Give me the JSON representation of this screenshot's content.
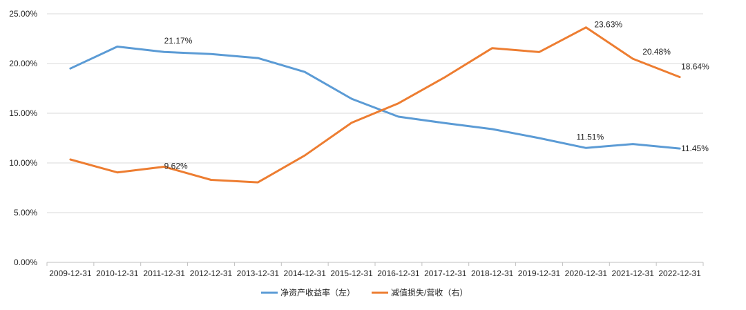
{
  "chart_data": {
    "type": "line",
    "title": "",
    "xlabel": "",
    "ylabel": "",
    "categories": [
      "2009-12-31",
      "2010-12-31",
      "2011-12-31",
      "2012-12-31",
      "2013-12-31",
      "2014-12-31",
      "2015-12-31",
      "2016-12-31",
      "2017-12-31",
      "2018-12-31",
      "2019-12-31",
      "2020-12-31",
      "2021-12-31",
      "2022-12-31"
    ],
    "yticks": [
      "25.00%",
      "20.00%",
      "15.00%",
      "10.00%",
      "5.00%",
      "0.00%"
    ],
    "ylim": [
      0,
      25
    ],
    "grid": true,
    "legend_position": "bottom",
    "series": [
      {
        "name": "净资产收益率（左）",
        "color": "#5B9BD5",
        "values": [
          19.5,
          21.7,
          21.17,
          20.95,
          20.55,
          19.15,
          16.45,
          14.65,
          14.0,
          13.4,
          12.5,
          11.51,
          11.9,
          11.45
        ],
        "labels": [
          {
            "index": 2,
            "text": "21.17%"
          },
          {
            "index": 11,
            "text": "11.51%"
          },
          {
            "index": 13,
            "text": "11.45%"
          }
        ]
      },
      {
        "name": "减值损失/营收（右）",
        "color": "#ED7D31",
        "values": [
          10.35,
          9.05,
          9.62,
          8.3,
          8.05,
          10.75,
          14.05,
          16.0,
          18.65,
          21.55,
          21.15,
          23.63,
          20.48,
          18.64
        ],
        "labels": [
          {
            "index": 2,
            "text": "9.62%"
          },
          {
            "index": 11,
            "text": "23.63%"
          },
          {
            "index": 12,
            "text": "20.48%"
          },
          {
            "index": 13,
            "text": "18.64%"
          }
        ]
      }
    ]
  }
}
